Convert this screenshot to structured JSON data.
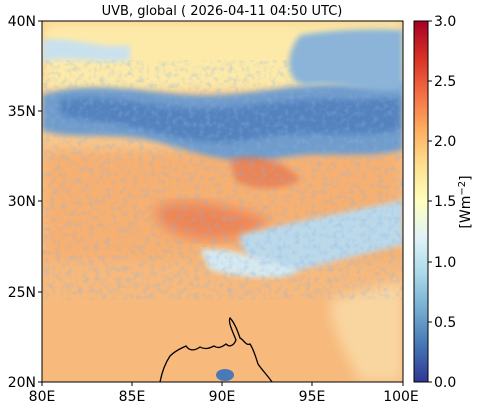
{
  "title": "UVB, global ( 2026-04-11 04:50 UTC)",
  "map": {
    "x_ticks": [
      "80E",
      "85E",
      "90E",
      "95E",
      "100E"
    ],
    "y_ticks": [
      "20N",
      "25N",
      "30N",
      "35N",
      "40N"
    ],
    "lon_range": [
      80,
      100
    ],
    "lat_range": [
      20,
      40
    ]
  },
  "colorbar": {
    "label": "[Wm",
    "label_sup": "−2",
    "label_end": "]",
    "ticks": [
      "0.0",
      "0.5",
      "1.0",
      "1.5",
      "2.0",
      "2.5",
      "3.0"
    ],
    "range": [
      0,
      3
    ],
    "colormap": "RdYlBu_r",
    "colors": [
      "#313695",
      "#4575b4",
      "#74add1",
      "#abd9e9",
      "#e0f3f8",
      "#ffffbf",
      "#fee090",
      "#fdae61",
      "#f46d43",
      "#d73027",
      "#a50026"
    ]
  }
}
